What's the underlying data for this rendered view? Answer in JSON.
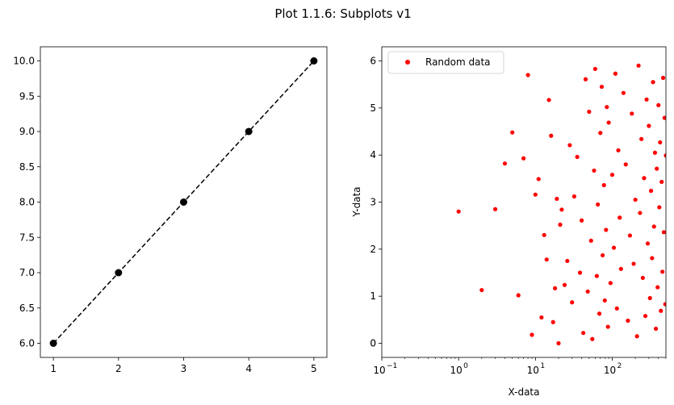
{
  "figure_title": "Plot 1.1.6: Subplots v1",
  "chart_data": [
    {
      "type": "line",
      "title": "",
      "xlabel": "",
      "ylabel": "",
      "x": [
        1,
        2,
        3,
        4,
        5
      ],
      "y": [
        6.0,
        7.0,
        8.0,
        9.0,
        10.0
      ],
      "line_style": "dashed",
      "marker": "circle",
      "color": "#000000",
      "xlim": [
        0.8,
        5.2
      ],
      "ylim": [
        5.8,
        10.2
      ],
      "xticks": [
        1,
        2,
        3,
        4,
        5
      ],
      "yticks": [
        6.0,
        6.5,
        7.0,
        7.5,
        8.0,
        8.5,
        9.0,
        9.5,
        10.0
      ],
      "xtick_labels": [
        "1",
        "2",
        "3",
        "4",
        "5"
      ],
      "ytick_labels": [
        "6.0",
        "6.5",
        "7.0",
        "7.5",
        "8.0",
        "8.5",
        "9.0",
        "9.5",
        "10.0"
      ],
      "grid": false
    },
    {
      "type": "scatter",
      "title": "",
      "xlabel": "X-data",
      "ylabel": "Y-data",
      "x_scale": "log",
      "xlim": [
        0.1,
        500
      ],
      "ylim": [
        -0.3,
        6.3
      ],
      "xticks": [
        0.1,
        1,
        10,
        100
      ],
      "yticks": [
        0,
        1,
        2,
        3,
        4,
        5,
        6
      ],
      "xtick_labels": [
        "10",
        "10",
        "10",
        "10"
      ],
      "xtick_exponents": [
        "−1",
        "0",
        "1",
        "2"
      ],
      "ytick_labels": [
        "0",
        "1",
        "2",
        "3",
        "4",
        "5",
        "6"
      ],
      "color": "#ff0000",
      "marker": "point",
      "grid": false,
      "legend": {
        "entries": [
          "Random data"
        ],
        "placement": "upper-left"
      },
      "series": [
        {
          "name": "Random data",
          "x": [
            1,
            2,
            3,
            4,
            5,
            6,
            7,
            8,
            9,
            10,
            11,
            12,
            13,
            14,
            15,
            16,
            17,
            18,
            19,
            20,
            21,
            22,
            24,
            26,
            28,
            30,
            32,
            35,
            38,
            40,
            42,
            45,
            48,
            50,
            53,
            55,
            58,
            60,
            63,
            65,
            68,
            70,
            73,
            75,
            78,
            80,
            83,
            85,
            88,
            90,
            95,
            100,
            105,
            110,
            115,
            120,
            125,
            130,
            140,
            150,
            160,
            170,
            180,
            190,
            200,
            210,
            220,
            230,
            240,
            250,
            260,
            270,
            280,
            290,
            300,
            310,
            320,
            330,
            340,
            350,
            360,
            370,
            380,
            390,
            400,
            410,
            420,
            430,
            440,
            450,
            460,
            470,
            480,
            490,
            500
          ],
          "y": [
            2.8,
            1.13,
            2.85,
            3.82,
            4.48,
            1.02,
            3.93,
            5.7,
            0.18,
            3.16,
            3.49,
            0.55,
            2.3,
            1.78,
            5.17,
            4.41,
            0.45,
            1.17,
            3.07,
            0.0,
            2.52,
            2.84,
            1.24,
            1.75,
            4.21,
            0.87,
            3.12,
            3.96,
            1.5,
            2.61,
            0.22,
            5.61,
            1.1,
            4.92,
            2.18,
            0.09,
            3.67,
            5.83,
            1.43,
            2.95,
            0.63,
            4.47,
            5.45,
            1.87,
            3.36,
            0.91,
            2.41,
            5.02,
            0.35,
            4.69,
            1.28,
            3.58,
            2.03,
            5.73,
            0.74,
            4.1,
            2.67,
            1.58,
            5.32,
            3.8,
            0.48,
            2.29,
            4.88,
            1.69,
            3.05,
            0.15,
            5.9,
            2.77,
            4.34,
            1.39,
            3.51,
            0.58,
            5.18,
            2.12,
            4.62,
            0.96,
            3.24,
            1.81,
            5.55,
            2.48,
            4.05,
            0.31,
            3.71,
            1.19,
            5.06,
            2.89,
            4.27,
            0.69,
            3.43,
            1.52,
            5.64,
            2.36,
            4.79,
            0.83,
            3.99
          ]
        }
      ]
    }
  ]
}
